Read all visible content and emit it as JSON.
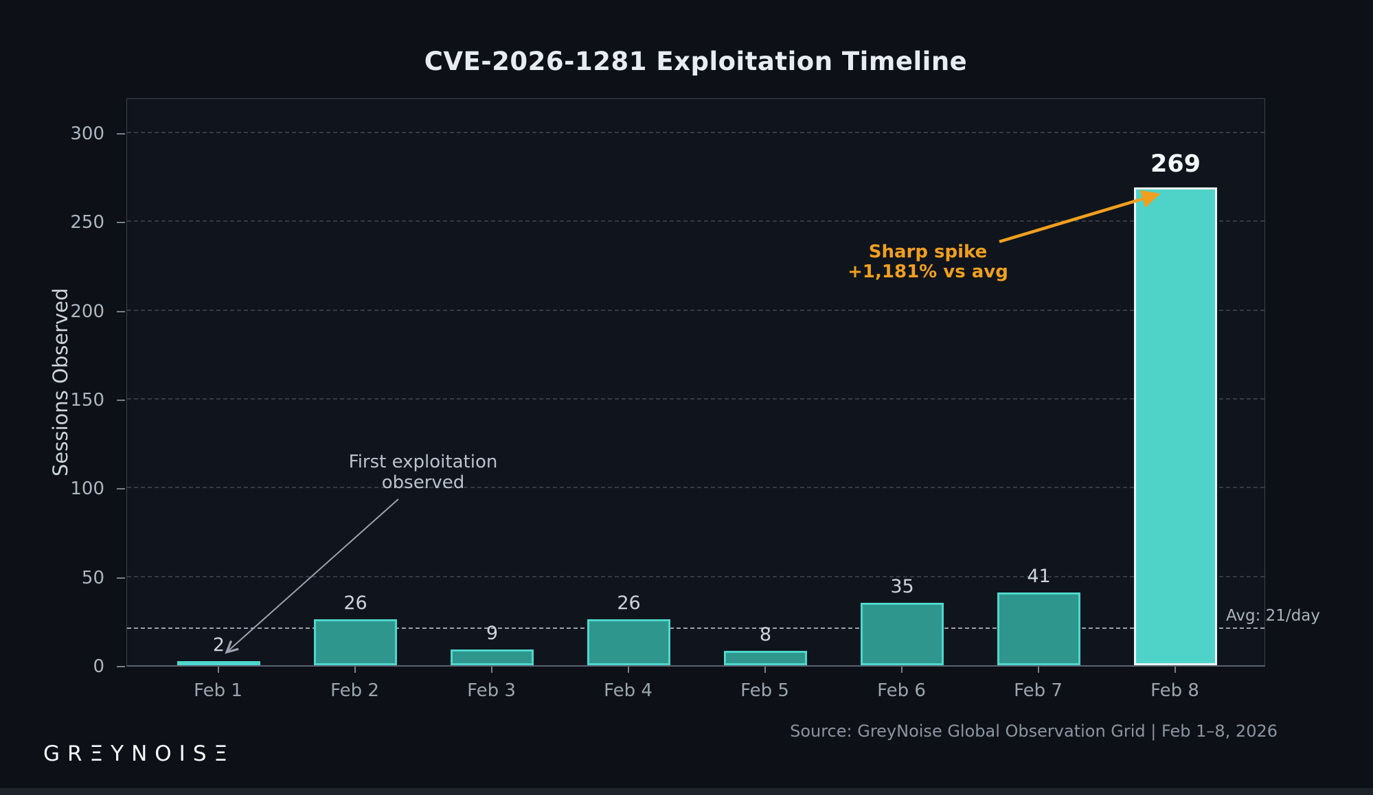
{
  "title": "CVE-2026-1281 Exploitation Timeline",
  "chart_data": {
    "type": "bar",
    "categories": [
      "Feb 1",
      "Feb 2",
      "Feb 3",
      "Feb 4",
      "Feb 5",
      "Feb 6",
      "Feb 7",
      "Feb 8"
    ],
    "values": [
      2,
      26,
      9,
      26,
      8,
      35,
      41,
      269
    ],
    "title": "CVE-2026-1281 Exploitation Timeline",
    "xlabel": "",
    "ylabel": "Sessions Observed",
    "ylim": [
      0,
      320
    ],
    "yticks": [
      0,
      50,
      100,
      150,
      200,
      250,
      300
    ],
    "grid": true,
    "legend": false,
    "avg_line": {
      "value": 21,
      "label": "Avg: 21/day"
    },
    "highlight_index": 7,
    "colors": {
      "background": "#0d1117",
      "bar_fill": "#2f968d",
      "bar_edge": "#4ed8cc",
      "highlight_fill": "#4fd3c9",
      "highlight_edge": "#edf2f6",
      "annotation_orange": "#f0a01e"
    }
  },
  "annotations": {
    "first_exploitation": {
      "lines": [
        "First exploitation",
        "observed"
      ]
    },
    "sharp_spike": {
      "lines": [
        "Sharp spike",
        "+1,181% vs avg"
      ]
    }
  },
  "avg_label": "Avg: 21/day",
  "footer": {
    "brand_wordmark": "GRΞYNOISΞ",
    "source": "Source: GreyNoise Global Observation Grid  |  Feb 1–8, 2026"
  }
}
